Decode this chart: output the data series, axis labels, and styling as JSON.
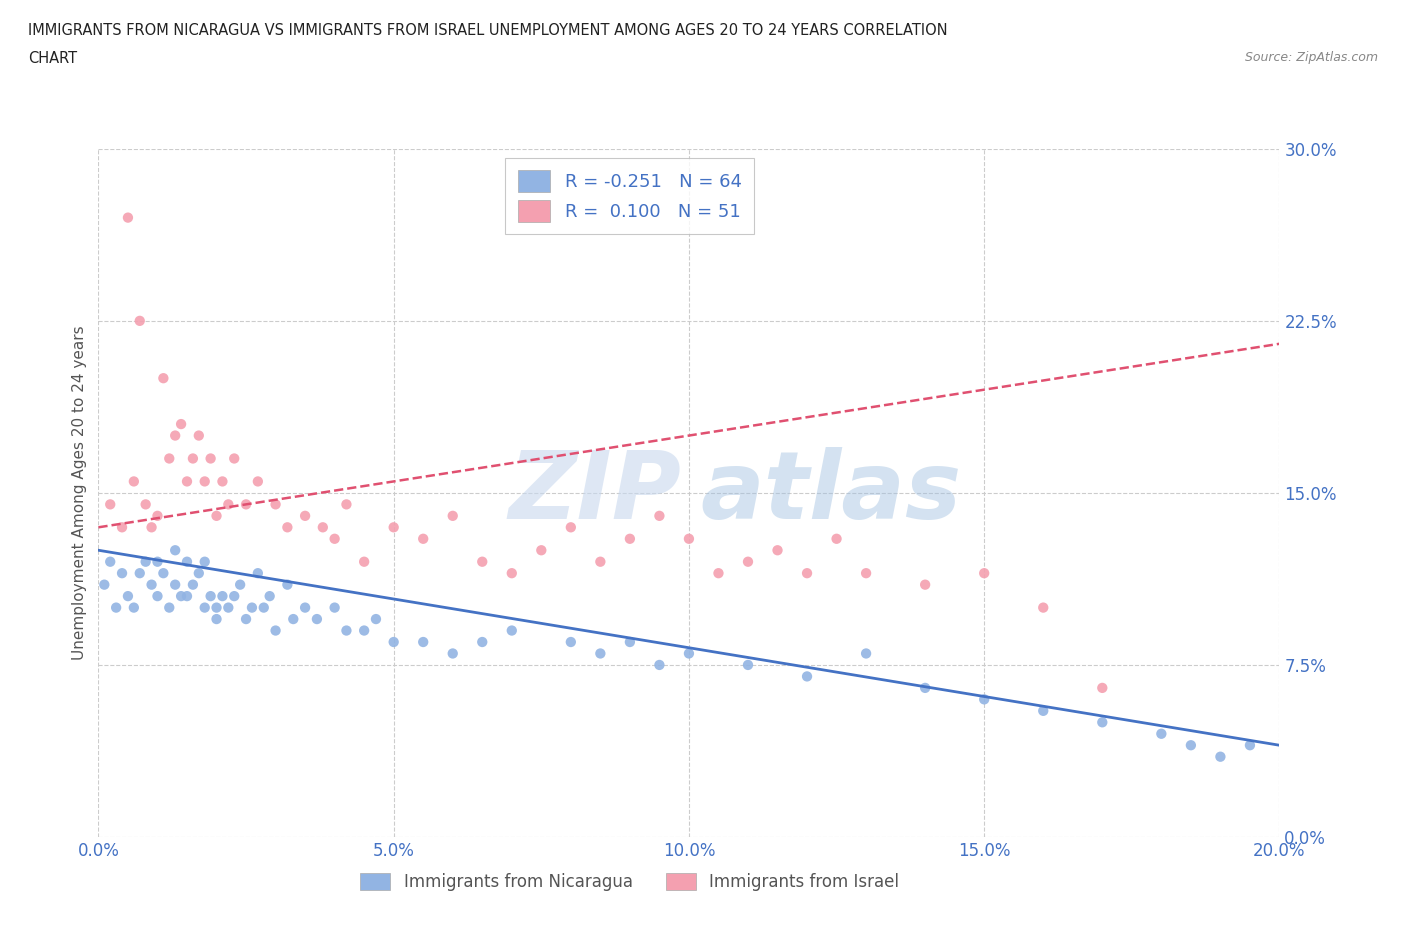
{
  "title_line1": "IMMIGRANTS FROM NICARAGUA VS IMMIGRANTS FROM ISRAEL UNEMPLOYMENT AMONG AGES 20 TO 24 YEARS CORRELATION",
  "title_line2": "CHART",
  "source_text": "Source: ZipAtlas.com",
  "ylabel": "Unemployment Among Ages 20 to 24 years",
  "legend_label1": "Immigrants from Nicaragua",
  "legend_label2": "Immigrants from Israel",
  "R1": -0.251,
  "N1": 64,
  "R2": 0.1,
  "N2": 51,
  "color1": "#92b4e3",
  "color2": "#f4a0b0",
  "line_color1": "#4472c4",
  "line_color2": "#e05070",
  "xmin": 0.0,
  "xmax": 0.2,
  "ymin": 0.0,
  "ymax": 0.3,
  "yticks": [
    0.0,
    0.075,
    0.15,
    0.225,
    0.3
  ],
  "xticks": [
    0.0,
    0.05,
    0.1,
    0.15,
    0.2
  ],
  "background_color": "#ffffff",
  "scatter1_x": [
    0.001,
    0.002,
    0.003,
    0.004,
    0.005,
    0.006,
    0.007,
    0.008,
    0.009,
    0.01,
    0.01,
    0.011,
    0.012,
    0.013,
    0.013,
    0.014,
    0.015,
    0.015,
    0.016,
    0.017,
    0.018,
    0.018,
    0.019,
    0.02,
    0.02,
    0.021,
    0.022,
    0.023,
    0.024,
    0.025,
    0.026,
    0.027,
    0.028,
    0.029,
    0.03,
    0.032,
    0.033,
    0.035,
    0.037,
    0.04,
    0.042,
    0.045,
    0.047,
    0.05,
    0.055,
    0.06,
    0.065,
    0.07,
    0.08,
    0.085,
    0.09,
    0.095,
    0.1,
    0.11,
    0.12,
    0.13,
    0.14,
    0.15,
    0.16,
    0.17,
    0.18,
    0.185,
    0.19,
    0.195
  ],
  "scatter1_y": [
    0.11,
    0.12,
    0.1,
    0.115,
    0.105,
    0.1,
    0.115,
    0.12,
    0.11,
    0.12,
    0.105,
    0.115,
    0.1,
    0.11,
    0.125,
    0.105,
    0.105,
    0.12,
    0.11,
    0.115,
    0.1,
    0.12,
    0.105,
    0.095,
    0.1,
    0.105,
    0.1,
    0.105,
    0.11,
    0.095,
    0.1,
    0.115,
    0.1,
    0.105,
    0.09,
    0.11,
    0.095,
    0.1,
    0.095,
    0.1,
    0.09,
    0.09,
    0.095,
    0.085,
    0.085,
    0.08,
    0.085,
    0.09,
    0.085,
    0.08,
    0.085,
    0.075,
    0.08,
    0.075,
    0.07,
    0.08,
    0.065,
    0.06,
    0.055,
    0.05,
    0.045,
    0.04,
    0.035,
    0.04
  ],
  "scatter2_x": [
    0.002,
    0.004,
    0.005,
    0.006,
    0.007,
    0.008,
    0.009,
    0.01,
    0.011,
    0.012,
    0.013,
    0.014,
    0.015,
    0.016,
    0.017,
    0.018,
    0.019,
    0.02,
    0.021,
    0.022,
    0.023,
    0.025,
    0.027,
    0.03,
    0.032,
    0.035,
    0.038,
    0.04,
    0.042,
    0.045,
    0.05,
    0.055,
    0.06,
    0.065,
    0.07,
    0.075,
    0.08,
    0.085,
    0.09,
    0.095,
    0.1,
    0.105,
    0.11,
    0.115,
    0.12,
    0.125,
    0.13,
    0.14,
    0.15,
    0.16,
    0.17
  ],
  "scatter2_y": [
    0.145,
    0.135,
    0.27,
    0.155,
    0.225,
    0.145,
    0.135,
    0.14,
    0.2,
    0.165,
    0.175,
    0.18,
    0.155,
    0.165,
    0.175,
    0.155,
    0.165,
    0.14,
    0.155,
    0.145,
    0.165,
    0.145,
    0.155,
    0.145,
    0.135,
    0.14,
    0.135,
    0.13,
    0.145,
    0.12,
    0.135,
    0.13,
    0.14,
    0.12,
    0.115,
    0.125,
    0.135,
    0.12,
    0.13,
    0.14,
    0.13,
    0.115,
    0.12,
    0.125,
    0.115,
    0.13,
    0.115,
    0.11,
    0.115,
    0.1,
    0.065
  ],
  "trend1_x": [
    0.0,
    0.2
  ],
  "trend1_y": [
    0.125,
    0.04
  ],
  "trend2_x": [
    0.0,
    0.2
  ],
  "trend2_y": [
    0.135,
    0.215
  ]
}
